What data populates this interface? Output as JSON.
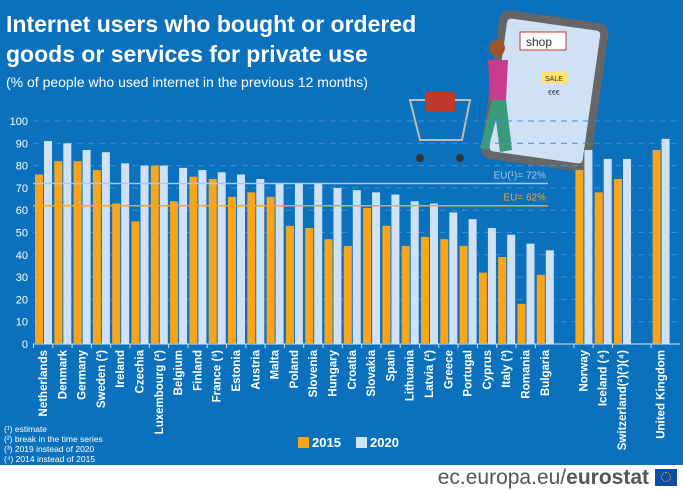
{
  "title_line1": "Internet users who bought or ordered",
  "title_line2": "goods or services for private use",
  "subtitle": "(% of people who used internet in the previous 12 months)",
  "illustration": {
    "shop_sign": "shop",
    "sale_sign": "SALE",
    "price_sign": "€€€"
  },
  "chart_data": {
    "type": "bar",
    "title": "Internet users who bought or ordered goods or services for private use",
    "ylim": [
      0,
      100
    ],
    "yticks": [
      0,
      10,
      20,
      30,
      40,
      50,
      60,
      70,
      80,
      90,
      100
    ],
    "grid": true,
    "categories": [
      "Netherlands",
      "Denmark",
      "Germany",
      "Sweden (²)",
      "Ireland",
      "Czechia",
      "Luxembourg (²)",
      "Belgium",
      "Finland",
      "France (³)",
      "Estonia",
      "Austria",
      "Malta",
      "Poland",
      "Slovenia",
      "Hungary",
      "Croatia",
      "Slovakia",
      "Spain",
      "Lithuania",
      "Latvia (²)",
      "Greece",
      "Portugal",
      "Cyprus",
      "Italy (³)",
      "Romania",
      "Bulgaria",
      "Norway",
      "Iceland (⁴)",
      "Switzerland(²)(³)(⁴)",
      "United Kingdom"
    ],
    "series": [
      {
        "name": "2015",
        "color": "#f9a51b",
        "values": [
          76,
          82,
          82,
          78,
          63,
          55,
          80,
          64,
          75,
          74,
          66,
          68,
          66,
          53,
          52,
          47,
          44,
          61,
          53,
          44,
          48,
          47,
          44,
          32,
          39,
          18,
          31,
          78,
          68,
          74,
          87
        ]
      },
      {
        "name": "2020",
        "color": "#cfe2f5",
        "values": [
          91,
          90,
          87,
          86,
          81,
          80,
          80,
          79,
          78,
          77,
          76,
          74,
          72,
          72,
          72,
          70,
          69,
          68,
          67,
          64,
          63,
          59,
          56,
          52,
          49,
          45,
          42,
          87,
          83,
          83,
          92
        ]
      }
    ],
    "reference_lines": [
      {
        "label": "EU(¹)= 72%",
        "value": 72,
        "color": "#a8c8ee"
      },
      {
        "label": "EU= 62%",
        "value": 62,
        "color": "#f9a51b"
      }
    ],
    "legend_placement": "bottom-center"
  },
  "notes": [
    "(¹) estimate",
    "(²) break in the time series",
    "(³) 2019 instead of 2020",
    "(⁴) 2014 instead of 2015"
  ],
  "footer": {
    "domain": "ec.europa.eu/",
    "brand": "eurostat"
  }
}
